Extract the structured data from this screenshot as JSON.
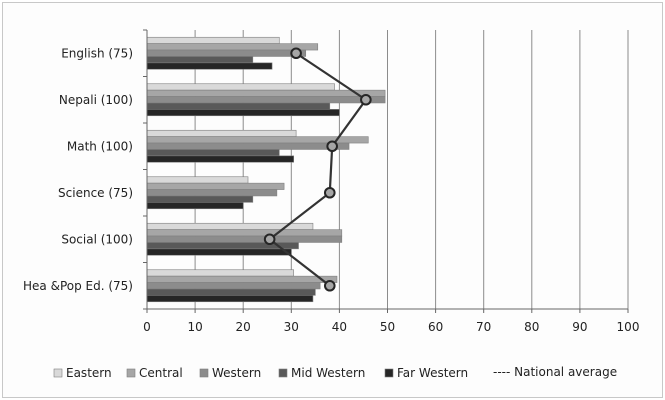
{
  "chart_data": {
    "type": "bar",
    "orientation": "horizontal",
    "categories": [
      "English (75)",
      "Nepali (100)",
      "Math (100)",
      "Science (75)",
      "Social (100)",
      "Hea &Pop Ed. (75)"
    ],
    "series": [
      {
        "name": "Eastern",
        "color": "#d9d9d9",
        "values": [
          27.5,
          39,
          31,
          21,
          34.5,
          30.5
        ]
      },
      {
        "name": "Central",
        "color": "#a6a6a6",
        "values": [
          35.5,
          49.5,
          46,
          28.5,
          40.5,
          39.5
        ]
      },
      {
        "name": "Western",
        "color": "#8c8c8c",
        "values": [
          33,
          49.5,
          42,
          27,
          40.5,
          36
        ]
      },
      {
        "name": "Mid Western",
        "color": "#595959",
        "values": [
          22,
          38,
          27.5,
          22,
          31.5,
          35
        ]
      },
      {
        "name": "Far Western",
        "color": "#262626",
        "values": [
          26,
          40,
          30.5,
          20,
          30,
          34.5
        ]
      }
    ],
    "line_series": {
      "name": "---- National  average",
      "values": [
        31,
        45.5,
        38.5,
        38,
        25.5,
        38
      ]
    },
    "xlim": [
      0,
      100
    ],
    "x_ticks": [
      "0",
      "10",
      "20",
      "30",
      "40",
      "50",
      "60",
      "70",
      "80",
      "90",
      "100"
    ],
    "grid": "vertical",
    "legend_position": "bottom",
    "title": "",
    "xlabel": "",
    "ylabel": ""
  }
}
